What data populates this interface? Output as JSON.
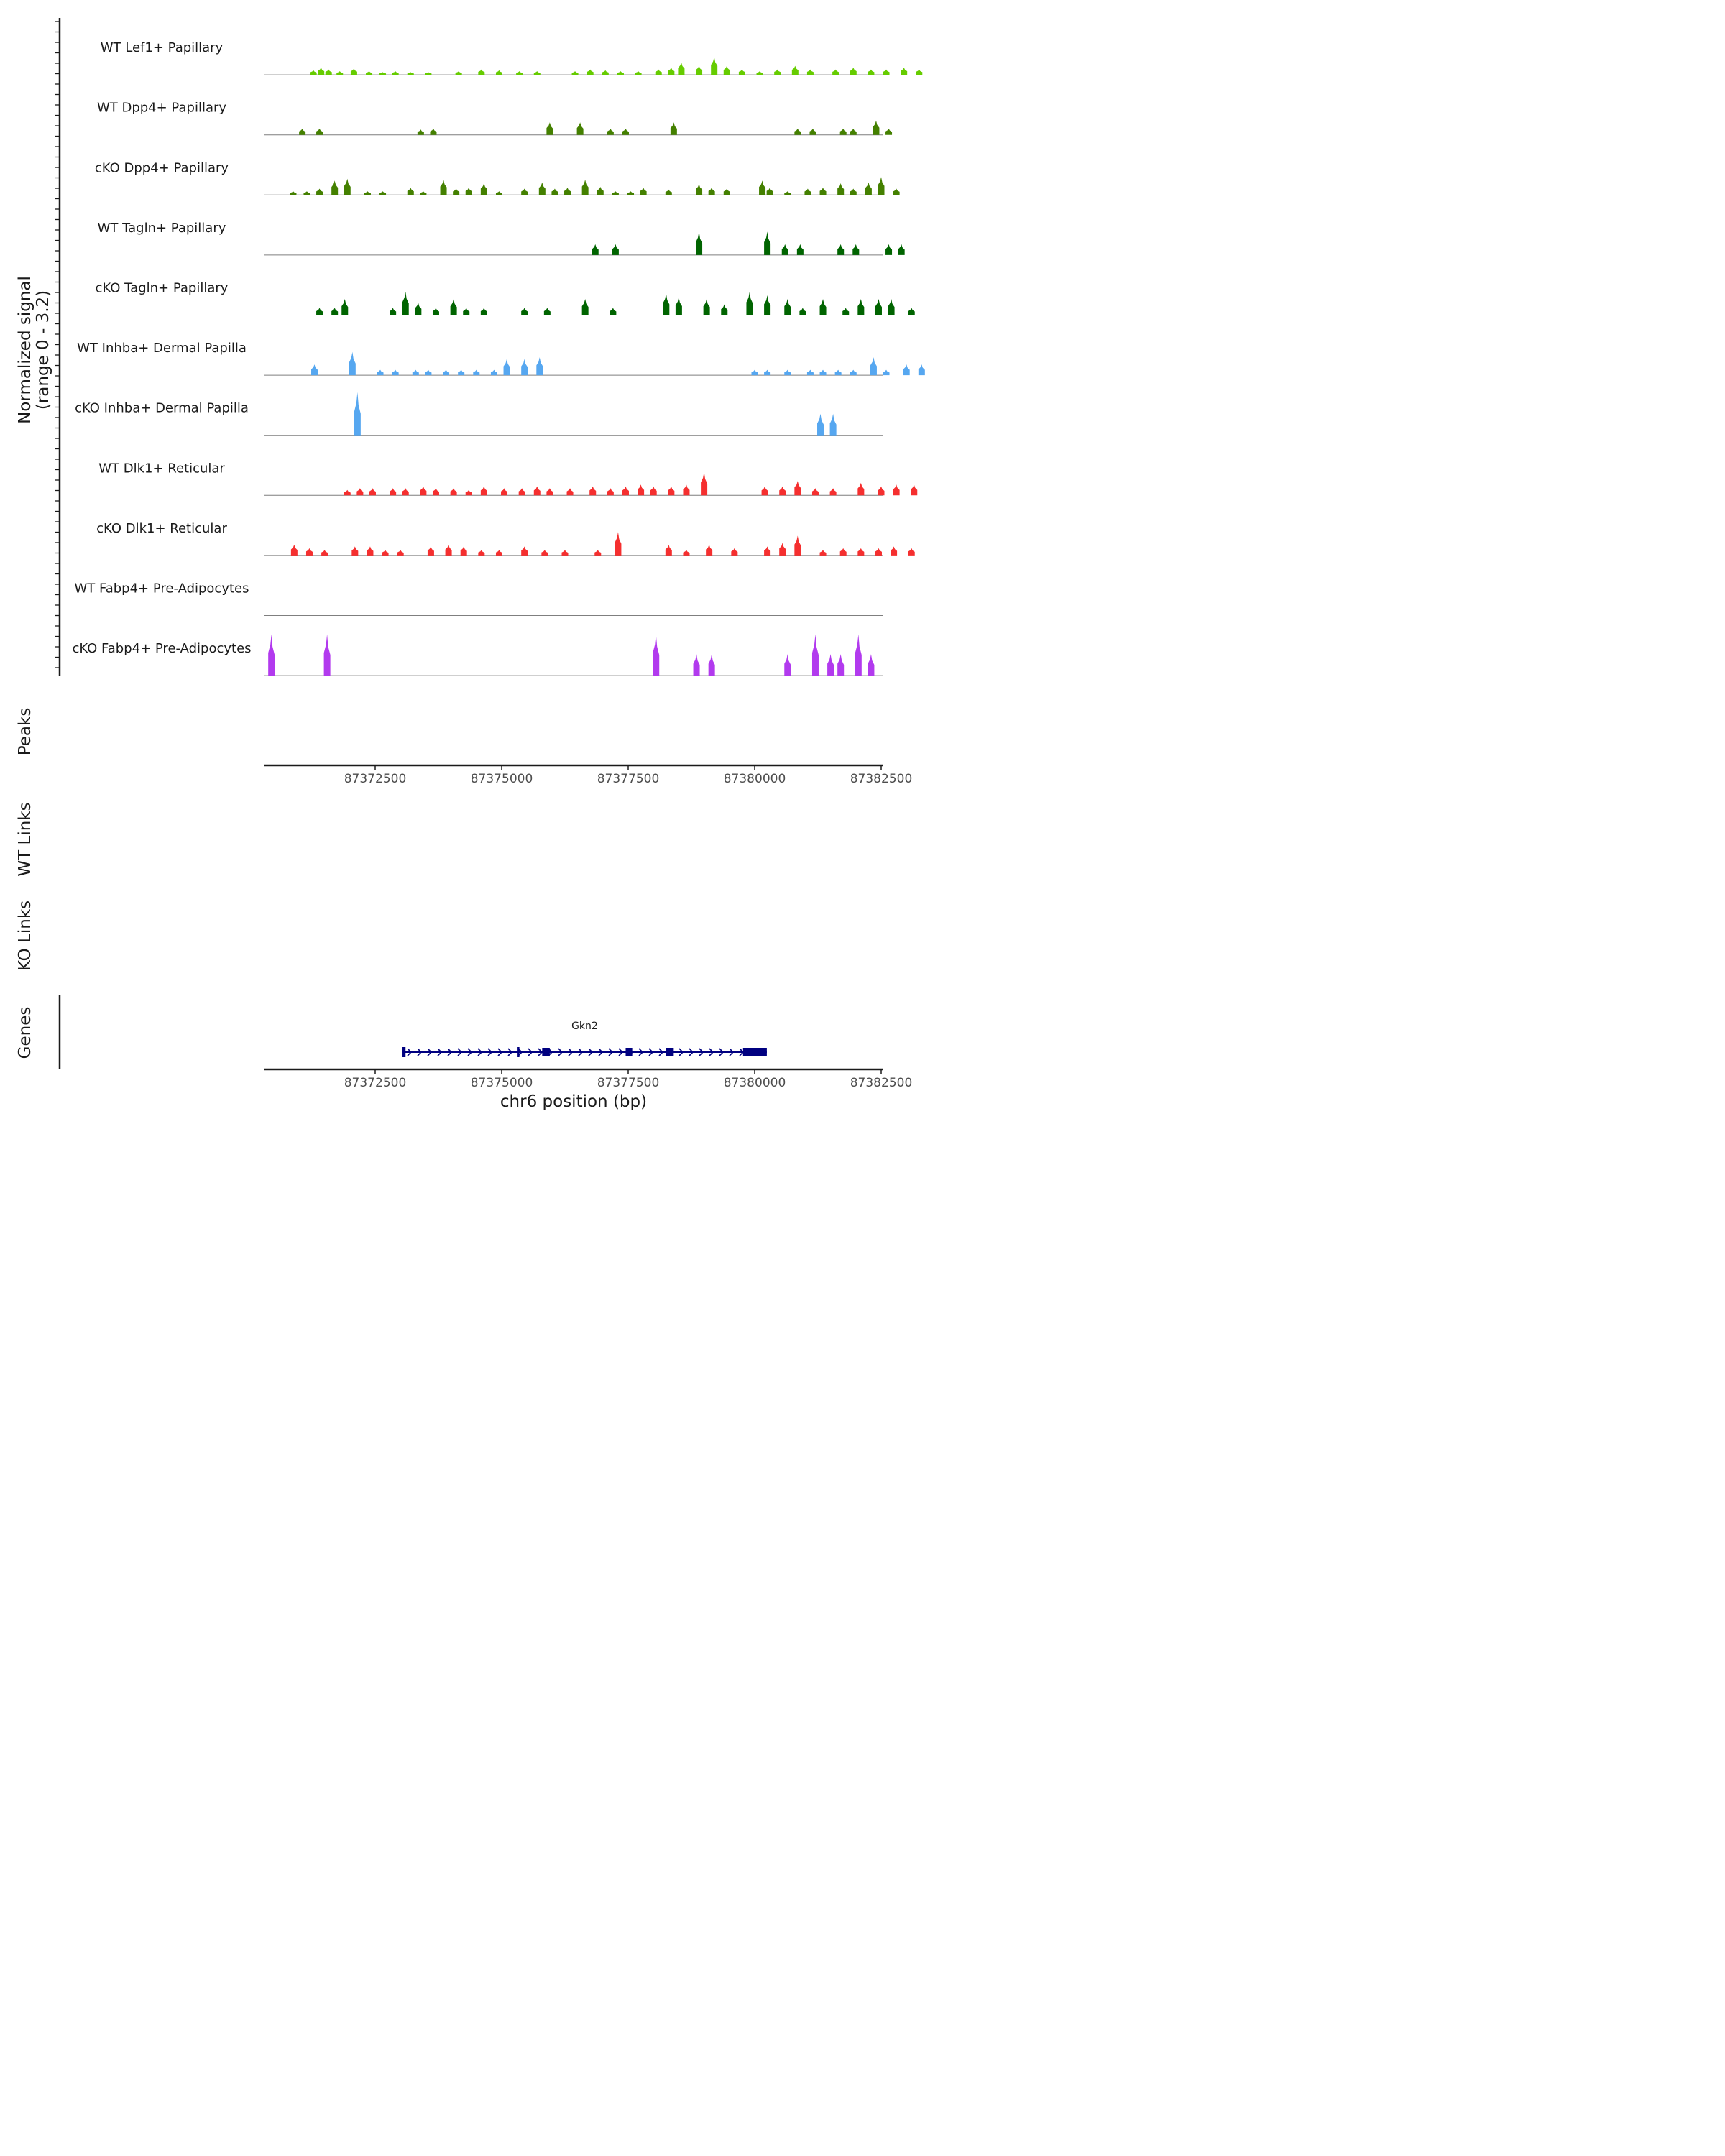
{
  "chart_data": {
    "type": "area",
    "title": "",
    "region": {
      "chromosome": "chr6",
      "start": 87370000,
      "end": 87382500
    },
    "y_axis": {
      "label_line1": "Normalized signal",
      "label_line2": "(range 0 - 3.2)",
      "range": [
        0,
        3.2
      ]
    },
    "tracks": [
      {
        "name": "WT Lef1+ Papillary",
        "color": "#66cc00",
        "peaks": [
          [
            87371280,
            0.25
          ],
          [
            87371430,
            0.4
          ],
          [
            87371580,
            0.3
          ],
          [
            87371800,
            0.2
          ],
          [
            87372080,
            0.35
          ],
          [
            87372380,
            0.2
          ],
          [
            87372650,
            0.15
          ],
          [
            87372900,
            0.2
          ],
          [
            87373200,
            0.15
          ],
          [
            87373550,
            0.15
          ],
          [
            87374150,
            0.2
          ],
          [
            87374600,
            0.3
          ],
          [
            87374950,
            0.25
          ],
          [
            87375350,
            0.2
          ],
          [
            87375700,
            0.2
          ],
          [
            87376450,
            0.2
          ],
          [
            87376750,
            0.3
          ],
          [
            87377050,
            0.25
          ],
          [
            87377350,
            0.2
          ],
          [
            87377700,
            0.2
          ],
          [
            87378100,
            0.3
          ],
          [
            87378350,
            0.4
          ],
          [
            87378550,
            0.7
          ],
          [
            87378900,
            0.5
          ],
          [
            87379200,
            1.0
          ],
          [
            87379450,
            0.5
          ],
          [
            87379750,
            0.3
          ],
          [
            87380100,
            0.2
          ],
          [
            87380450,
            0.3
          ],
          [
            87380800,
            0.5
          ],
          [
            87381100,
            0.3
          ],
          [
            87381600,
            0.3
          ],
          [
            87381950,
            0.4
          ],
          [
            87382300,
            0.3
          ],
          [
            87382600,
            0.3
          ],
          [
            87382950,
            0.4
          ],
          [
            87383250,
            0.3
          ]
        ]
      },
      {
        "name": "WT Dpp4+ Papillary",
        "color": "#448000",
        "peaks": [
          [
            87371060,
            0.35
          ],
          [
            87371400,
            0.35
          ],
          [
            87373400,
            0.3
          ],
          [
            87373650,
            0.35
          ],
          [
            87375950,
            0.7
          ],
          [
            87376550,
            0.7
          ],
          [
            87377150,
            0.35
          ],
          [
            87377450,
            0.35
          ],
          [
            87378400,
            0.7
          ],
          [
            87380850,
            0.35
          ],
          [
            87381150,
            0.35
          ],
          [
            87381750,
            0.35
          ],
          [
            87381950,
            0.35
          ],
          [
            87382400,
            0.8
          ],
          [
            87382650,
            0.35
          ]
        ]
      },
      {
        "name": "cKO Dpp4+ Papillary",
        "color": "#448000",
        "peaks": [
          [
            87370880,
            0.2
          ],
          [
            87371150,
            0.2
          ],
          [
            87371400,
            0.35
          ],
          [
            87371700,
            0.8
          ],
          [
            87371950,
            0.9
          ],
          [
            87372350,
            0.2
          ],
          [
            87372650,
            0.2
          ],
          [
            87373200,
            0.4
          ],
          [
            87373450,
            0.2
          ],
          [
            87373850,
            0.85
          ],
          [
            87374100,
            0.35
          ],
          [
            87374350,
            0.4
          ],
          [
            87374650,
            0.65
          ],
          [
            87374950,
            0.2
          ],
          [
            87375450,
            0.35
          ],
          [
            87375800,
            0.7
          ],
          [
            87376050,
            0.35
          ],
          [
            87376300,
            0.4
          ],
          [
            87376650,
            0.85
          ],
          [
            87376950,
            0.45
          ],
          [
            87377250,
            0.2
          ],
          [
            87377550,
            0.2
          ],
          [
            87377800,
            0.4
          ],
          [
            87378300,
            0.3
          ],
          [
            87378900,
            0.6
          ],
          [
            87379150,
            0.4
          ],
          [
            87379450,
            0.35
          ],
          [
            87380150,
            0.8
          ],
          [
            87380300,
            0.4
          ],
          [
            87380650,
            0.2
          ],
          [
            87381050,
            0.35
          ],
          [
            87381350,
            0.4
          ],
          [
            87381700,
            0.65
          ],
          [
            87381950,
            0.35
          ],
          [
            87382250,
            0.7
          ],
          [
            87382500,
            1.0
          ],
          [
            87382800,
            0.35
          ]
        ]
      },
      {
        "name": "WT Tagln+ Papillary",
        "color": "#006400",
        "peaks": [
          [
            87376850,
            0.6
          ],
          [
            87377250,
            0.6
          ],
          [
            87378900,
            1.3
          ],
          [
            87380250,
            1.3
          ],
          [
            87380600,
            0.6
          ],
          [
            87380900,
            0.6
          ],
          [
            87381700,
            0.6
          ],
          [
            87382000,
            0.6
          ],
          [
            87382650,
            0.6
          ],
          [
            87382900,
            0.6
          ]
        ]
      },
      {
        "name": "cKO Tagln+ Papillary",
        "color": "#006400",
        "peaks": [
          [
            87371400,
            0.4
          ],
          [
            87371700,
            0.4
          ],
          [
            87371900,
            0.9
          ],
          [
            87372850,
            0.4
          ],
          [
            87373100,
            1.3
          ],
          [
            87373350,
            0.7
          ],
          [
            87373700,
            0.4
          ],
          [
            87374050,
            0.9
          ],
          [
            87374300,
            0.4
          ],
          [
            87374650,
            0.4
          ],
          [
            87375450,
            0.4
          ],
          [
            87375900,
            0.4
          ],
          [
            87376650,
            0.9
          ],
          [
            87377200,
            0.4
          ],
          [
            87378250,
            1.2
          ],
          [
            87378500,
            1.0
          ],
          [
            87379050,
            0.9
          ],
          [
            87379400,
            0.6
          ],
          [
            87379900,
            1.3
          ],
          [
            87380250,
            1.1
          ],
          [
            87380650,
            0.9
          ],
          [
            87380950,
            0.4
          ],
          [
            87381350,
            0.9
          ],
          [
            87381800,
            0.4
          ],
          [
            87382100,
            0.9
          ],
          [
            87382450,
            0.9
          ],
          [
            87382700,
            0.9
          ],
          [
            87383100,
            0.4
          ]
        ]
      },
      {
        "name": "WT Inhba+ Dermal Papilla",
        "color": "#56a7f0",
        "peaks": [
          [
            87371300,
            0.6
          ],
          [
            87372050,
            1.3
          ],
          [
            87372600,
            0.3
          ],
          [
            87372900,
            0.3
          ],
          [
            87373300,
            0.3
          ],
          [
            87373550,
            0.3
          ],
          [
            87373900,
            0.3
          ],
          [
            87374200,
            0.3
          ],
          [
            87374500,
            0.3
          ],
          [
            87374850,
            0.3
          ],
          [
            87375100,
            0.9
          ],
          [
            87375450,
            0.9
          ],
          [
            87375750,
            1.0
          ],
          [
            87380000,
            0.3
          ],
          [
            87380250,
            0.3
          ],
          [
            87380650,
            0.3
          ],
          [
            87381100,
            0.3
          ],
          [
            87381350,
            0.3
          ],
          [
            87381650,
            0.3
          ],
          [
            87381950,
            0.3
          ],
          [
            87382350,
            1.0
          ],
          [
            87382600,
            0.3
          ],
          [
            87383000,
            0.6
          ],
          [
            87383300,
            0.6
          ]
        ]
      },
      {
        "name": "cKO Inhba+ Dermal Papilla",
        "color": "#56a7f0",
        "peaks": [
          [
            87372150,
            2.4
          ],
          [
            87381300,
            1.2
          ],
          [
            87381550,
            1.2
          ]
        ]
      },
      {
        "name": "WT Dlk1+ Reticular",
        "color": "#f52f2f",
        "peaks": [
          [
            87371950,
            0.3
          ],
          [
            87372200,
            0.4
          ],
          [
            87372450,
            0.4
          ],
          [
            87372850,
            0.4
          ],
          [
            87373100,
            0.4
          ],
          [
            87373450,
            0.5
          ],
          [
            87373700,
            0.4
          ],
          [
            87374050,
            0.4
          ],
          [
            87374350,
            0.3
          ],
          [
            87374650,
            0.5
          ],
          [
            87375050,
            0.4
          ],
          [
            87375400,
            0.4
          ],
          [
            87375700,
            0.5
          ],
          [
            87375950,
            0.4
          ],
          [
            87376350,
            0.4
          ],
          [
            87376800,
            0.5
          ],
          [
            87377150,
            0.4
          ],
          [
            87377450,
            0.5
          ],
          [
            87377750,
            0.6
          ],
          [
            87378000,
            0.5
          ],
          [
            87378350,
            0.5
          ],
          [
            87378650,
            0.6
          ],
          [
            87379000,
            1.3
          ],
          [
            87380200,
            0.5
          ],
          [
            87380550,
            0.5
          ],
          [
            87380850,
            0.8
          ],
          [
            87381200,
            0.4
          ],
          [
            87381550,
            0.4
          ],
          [
            87382100,
            0.7
          ],
          [
            87382500,
            0.5
          ],
          [
            87382800,
            0.6
          ],
          [
            87383150,
            0.6
          ]
        ]
      },
      {
        "name": "cKO Dlk1+ Reticular",
        "color": "#f52f2f",
        "peaks": [
          [
            87370900,
            0.6
          ],
          [
            87371200,
            0.4
          ],
          [
            87371500,
            0.3
          ],
          [
            87372100,
            0.5
          ],
          [
            87372400,
            0.5
          ],
          [
            87372700,
            0.3
          ],
          [
            87373000,
            0.3
          ],
          [
            87373600,
            0.5
          ],
          [
            87373950,
            0.6
          ],
          [
            87374250,
            0.5
          ],
          [
            87374600,
            0.3
          ],
          [
            87374950,
            0.3
          ],
          [
            87375450,
            0.5
          ],
          [
            87375850,
            0.3
          ],
          [
            87376250,
            0.3
          ],
          [
            87376900,
            0.3
          ],
          [
            87377300,
            1.3
          ],
          [
            87378300,
            0.6
          ],
          [
            87378650,
            0.3
          ],
          [
            87379100,
            0.6
          ],
          [
            87379600,
            0.4
          ],
          [
            87380250,
            0.5
          ],
          [
            87380550,
            0.7
          ],
          [
            87380850,
            1.1
          ],
          [
            87381350,
            0.3
          ],
          [
            87381750,
            0.4
          ],
          [
            87382100,
            0.4
          ],
          [
            87382450,
            0.4
          ],
          [
            87382750,
            0.5
          ],
          [
            87383100,
            0.4
          ]
        ]
      },
      {
        "name": "WT Fabp4+ Pre-Adipocytes",
        "color": "#b23aee",
        "peaks": []
      },
      {
        "name": "cKO Fabp4+ Pre-Adipocytes",
        "color": "#b23aee",
        "peaks": [
          [
            87370450,
            2.3
          ],
          [
            87371550,
            2.3
          ],
          [
            87378050,
            2.3
          ],
          [
            87378850,
            1.2
          ],
          [
            87379150,
            1.2
          ],
          [
            87380650,
            1.2
          ],
          [
            87381200,
            2.3
          ],
          [
            87381500,
            1.2
          ],
          [
            87381700,
            1.2
          ],
          [
            87382050,
            2.3
          ],
          [
            87382300,
            1.2
          ]
        ]
      }
    ],
    "sections": {
      "peaks": "Peaks",
      "wt_links": "WT Links",
      "ko_links": "KO Links",
      "genes": "Genes"
    },
    "x_axis": {
      "label": "chr6 position (bp)",
      "ticks": [
        87372500,
        87375000,
        87377500,
        87380000,
        87382500
      ],
      "tick_labels": [
        "87372500",
        "87375000",
        "87377500",
        "87380000",
        "87382500"
      ]
    },
    "gene": {
      "name": "Gkn2",
      "start": 87373040,
      "end": 87380240,
      "strand": "+",
      "exons": [
        [
          87373040,
          87373100
        ],
        [
          87375300,
          87375350
        ],
        [
          87375800,
          87375950
        ],
        [
          87377450,
          87377580
        ],
        [
          87378250,
          87378400
        ],
        [
          87379770,
          87380240
        ]
      ]
    }
  }
}
